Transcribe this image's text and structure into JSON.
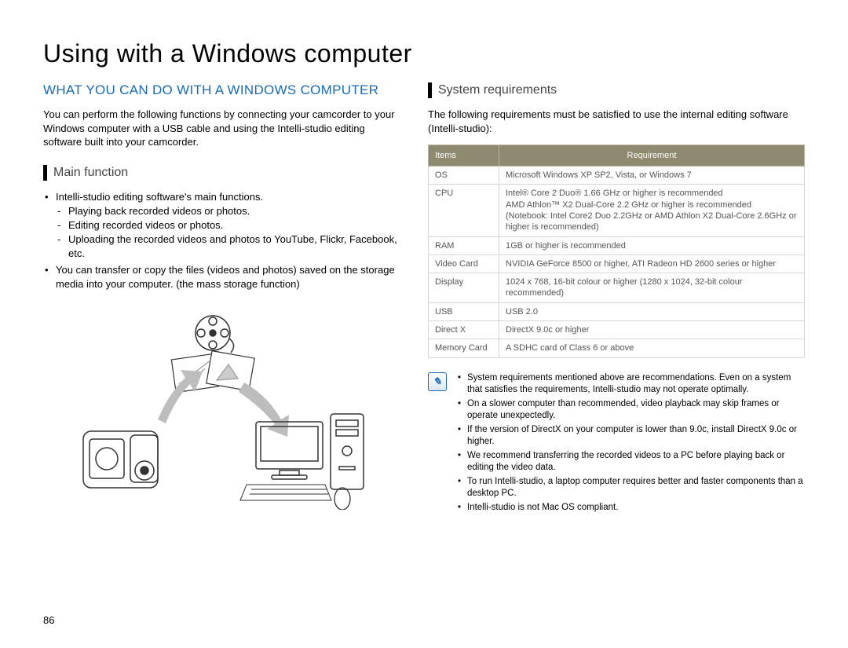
{
  "page": {
    "title": "Using with a Windows computer",
    "number": "86"
  },
  "left": {
    "heading": "WHAT YOU CAN DO WITH A WINDOWS COMPUTER",
    "intro": "You can perform the following functions by connecting your camcorder to your Windows computer with a USB cable and using the Intelli-studio editing software built into your camcorder.",
    "sub_heading": "Main function",
    "bullets": [
      {
        "text": "Intelli-studio editing software's main functions.",
        "subs": [
          "Playing back recorded videos or photos.",
          "Editing recorded videos or photos.",
          "Uploading the recorded videos and photos to YouTube, Flickr, Facebook, etc."
        ]
      },
      {
        "text": "You can transfer or copy the files (videos and photos) saved on the storage media into your computer. (the mass storage function)",
        "subs": []
      }
    ]
  },
  "right": {
    "sub_heading": "System requirements",
    "intro": "The following requirements must be satisfied to use the internal editing software (Intelli-studio):",
    "table": {
      "header_bg": "#8e8a6f",
      "header_color": "#ffffff",
      "columns": [
        "Items",
        "Requirement"
      ],
      "rows": [
        [
          "OS",
          "Microsoft Windows XP SP2, Vista, or Windows 7"
        ],
        [
          "CPU",
          "Intel® Core 2 Duo® 1.66 GHz or higher is recommended\nAMD Athlon™ X2 Dual-Core 2.2 GHz or higher is recommended\n(Notebook: Intel Core2 Duo 2.2GHz or AMD Athlon X2 Dual-Core 2.6GHz or higher is recommended)"
        ],
        [
          "RAM",
          "1GB or higher is recommended"
        ],
        [
          "Video Card",
          "NVIDIA GeForce 8500 or higher, ATI Radeon HD 2600 series or higher"
        ],
        [
          "Display",
          "1024 x 768, 16-bit colour or higher (1280 x 1024, 32-bit colour recommended)"
        ],
        [
          "USB",
          "USB 2.0"
        ],
        [
          "Direct X",
          "DirectX 9.0c or higher"
        ],
        [
          "Memory Card",
          "A SDHC card of Class 6 or above"
        ]
      ]
    },
    "notes": [
      "System requirements mentioned above are recommendations. Even on a system that satisfies the requirements, Intelli-studio may not operate optimally.",
      "On a slower computer than recommended, video playback may skip frames or operate unexpectedly.",
      "If the version of DirectX on your computer is lower than 9.0c, install DirectX 9.0c or higher.",
      "We recommend transferring the recorded videos to a PC before playing back or editing the video data.",
      "To run Intelli-studio, a laptop computer requires better and faster components than a desktop PC.",
      "Intelli-studio is not Mac OS compliant."
    ]
  },
  "illustration": {
    "stroke": "#333333",
    "arrow_fill": "#bdbdbd"
  }
}
